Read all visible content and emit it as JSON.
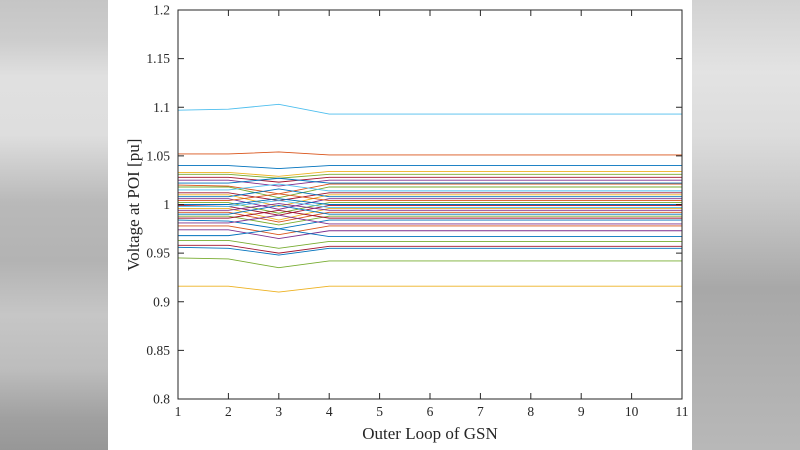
{
  "chart_data": {
    "type": "line",
    "title": "",
    "xlabel": "Outer Loop of GSN",
    "ylabel": "Voltage at POI [pu]",
    "grid": false,
    "legend": "none",
    "axis_color": "#262626",
    "plot_background": "#ffffff",
    "x": [
      1,
      2,
      3,
      4,
      5,
      6,
      7,
      8,
      9,
      10,
      11
    ],
    "xlim": [
      1,
      11
    ],
    "ylim": [
      0.8,
      1.2
    ],
    "xticks": [
      1,
      2,
      3,
      4,
      5,
      6,
      7,
      8,
      9,
      10,
      11
    ],
    "xtick_labels": [
      "1",
      "2",
      "3",
      "4",
      "5",
      "6",
      "7",
      "8",
      "9",
      "10",
      "11"
    ],
    "yticks": [
      0.8,
      0.85,
      0.9,
      0.95,
      1.0,
      1.05,
      1.1,
      1.15,
      1.2
    ],
    "ytick_labels": [
      "0.8",
      "0.85",
      "0.9",
      "0.95",
      "1",
      "1.05",
      "1.1",
      "1.15",
      "1.2"
    ],
    "series": [
      {
        "color": "#4DBEEE",
        "values": [
          1.097,
          1.098,
          1.103,
          1.093,
          1.093,
          1.093,
          1.093,
          1.093,
          1.093,
          1.093,
          1.093
        ]
      },
      {
        "color": "#D95319",
        "values": [
          1.052,
          1.052,
          1.054,
          1.051,
          1.051,
          1.051,
          1.051,
          1.051,
          1.051,
          1.051,
          1.051
        ]
      },
      {
        "color": "#0072BD",
        "values": [
          1.04,
          1.04,
          1.037,
          1.04,
          1.04,
          1.04,
          1.04,
          1.04,
          1.04,
          1.04,
          1.04
        ]
      },
      {
        "color": "#EDB120",
        "values": [
          1.033,
          1.033,
          1.029,
          1.034,
          1.034,
          1.034,
          1.034,
          1.034,
          1.034,
          1.034,
          1.034
        ]
      },
      {
        "color": "#77AC30",
        "values": [
          1.031,
          1.031,
          1.027,
          1.031,
          1.031,
          1.031,
          1.031,
          1.031,
          1.031,
          1.031,
          1.031
        ]
      },
      {
        "color": "#A2142F",
        "values": [
          1.028,
          1.028,
          1.023,
          1.028,
          1.028,
          1.028,
          1.028,
          1.028,
          1.028,
          1.028,
          1.028
        ]
      },
      {
        "color": "#7E2F8E",
        "values": [
          1.025,
          1.025,
          1.019,
          1.025,
          1.025,
          1.025,
          1.025,
          1.025,
          1.025,
          1.025,
          1.025
        ]
      },
      {
        "color": "#0072BD",
        "values": [
          1.022,
          1.022,
          1.027,
          1.022,
          1.022,
          1.022,
          1.022,
          1.022,
          1.022,
          1.022,
          1.022
        ]
      },
      {
        "color": "#D95319",
        "values": [
          1.02,
          1.019,
          1.011,
          1.021,
          1.021,
          1.021,
          1.021,
          1.021,
          1.021,
          1.021,
          1.021
        ]
      },
      {
        "color": "#77AC30",
        "values": [
          1.018,
          1.018,
          1.007,
          1.018,
          1.018,
          1.018,
          1.018,
          1.018,
          1.018,
          1.018,
          1.018
        ]
      },
      {
        "color": "#4DBEEE",
        "values": [
          1.015,
          1.015,
          1.021,
          1.014,
          1.014,
          1.014,
          1.014,
          1.014,
          1.014,
          1.014,
          1.014
        ]
      },
      {
        "color": "#A2142F",
        "values": [
          1.012,
          1.012,
          1.004,
          1.012,
          1.012,
          1.012,
          1.012,
          1.012,
          1.012,
          1.012,
          1.012
        ]
      },
      {
        "color": "#EDB120",
        "values": [
          1.01,
          1.01,
          0.998,
          1.01,
          1.01,
          1.01,
          1.01,
          1.01,
          1.01,
          1.01,
          1.01
        ]
      },
      {
        "color": "#0072BD",
        "values": [
          1.008,
          1.008,
          1.016,
          1.008,
          1.008,
          1.008,
          1.008,
          1.008,
          1.008,
          1.008,
          1.008
        ]
      },
      {
        "color": "#7E2F8E",
        "values": [
          1.006,
          1.006,
          0.995,
          1.006,
          1.006,
          1.006,
          1.006,
          1.006,
          1.006,
          1.006,
          1.006
        ]
      },
      {
        "color": "#D95319",
        "values": [
          1.004,
          1.004,
          1.011,
          1.004,
          1.004,
          1.004,
          1.004,
          1.004,
          1.004,
          1.004,
          1.004
        ]
      },
      {
        "color": "#77AC30",
        "values": [
          1.002,
          1.002,
          0.991,
          1.002,
          1.002,
          1.002,
          1.002,
          1.002,
          1.002,
          1.002,
          1.002
        ]
      },
      {
        "color": "#0072BD",
        "values": [
          1.0,
          1.0,
          1.006,
          1.0,
          1.0,
          1.0,
          1.0,
          1.0,
          1.0,
          1.0,
          1.0
        ]
      },
      {
        "color": "#A2142F",
        "values": [
          0.999,
          0.998,
          0.989,
          0.999,
          0.999,
          0.999,
          0.999,
          0.999,
          0.999,
          0.999,
          0.999
        ]
      },
      {
        "color": "#4DBEEE",
        "values": [
          0.998,
          0.998,
          1.004,
          0.997,
          0.997,
          0.997,
          0.997,
          0.997,
          0.997,
          0.997,
          0.997
        ]
      },
      {
        "color": "#EDB120",
        "values": [
          0.996,
          0.996,
          0.984,
          0.996,
          0.996,
          0.996,
          0.996,
          0.996,
          0.996,
          0.996,
          0.996
        ]
      },
      {
        "color": "#7E2F8E",
        "values": [
          0.994,
          0.994,
          1.001,
          0.994,
          0.994,
          0.994,
          0.994,
          0.994,
          0.994,
          0.994,
          0.994
        ]
      },
      {
        "color": "#D95319",
        "values": [
          0.992,
          0.992,
          0.982,
          0.992,
          0.992,
          0.992,
          0.992,
          0.992,
          0.992,
          0.992,
          0.992
        ]
      },
      {
        "color": "#0072BD",
        "values": [
          0.99,
          0.99,
          0.999,
          0.99,
          0.99,
          0.99,
          0.99,
          0.99,
          0.99,
          0.99,
          0.99
        ]
      },
      {
        "color": "#77AC30",
        "values": [
          0.988,
          0.988,
          0.979,
          0.988,
          0.988,
          0.988,
          0.988,
          0.988,
          0.988,
          0.988,
          0.988
        ]
      },
      {
        "color": "#A2142F",
        "values": [
          0.986,
          0.986,
          0.994,
          0.986,
          0.986,
          0.986,
          0.986,
          0.986,
          0.986,
          0.986,
          0.986
        ]
      },
      {
        "color": "#0072BD",
        "values": [
          0.984,
          0.983,
          0.975,
          0.984,
          0.984,
          0.984,
          0.984,
          0.984,
          0.984,
          0.984,
          0.984
        ]
      },
      {
        "color": "#7E2F8E",
        "values": [
          0.981,
          0.981,
          0.989,
          0.98,
          0.98,
          0.98,
          0.98,
          0.98,
          0.98,
          0.98,
          0.98
        ]
      },
      {
        "color": "#D95319",
        "values": [
          0.978,
          0.978,
          0.969,
          0.978,
          0.978,
          0.978,
          0.978,
          0.978,
          0.978,
          0.978,
          0.978
        ]
      },
      {
        "color": "#7E2F8E",
        "values": [
          0.974,
          0.974,
          0.965,
          0.973,
          0.973,
          0.973,
          0.973,
          0.973,
          0.973,
          0.973,
          0.973
        ]
      },
      {
        "color": "#0072BD",
        "values": [
          0.968,
          0.968,
          0.975,
          0.967,
          0.967,
          0.967,
          0.967,
          0.967,
          0.967,
          0.967,
          0.967
        ]
      },
      {
        "color": "#77AC30",
        "values": [
          0.963,
          0.963,
          0.955,
          0.962,
          0.962,
          0.962,
          0.962,
          0.962,
          0.962,
          0.962,
          0.962
        ]
      },
      {
        "color": "#A2142F",
        "values": [
          0.958,
          0.958,
          0.95,
          0.957,
          0.957,
          0.957,
          0.957,
          0.957,
          0.957,
          0.957,
          0.957
        ]
      },
      {
        "color": "#0072BD",
        "values": [
          0.956,
          0.955,
          0.948,
          0.955,
          0.955,
          0.955,
          0.955,
          0.955,
          0.955,
          0.955,
          0.955
        ]
      },
      {
        "color": "#77AC30",
        "values": [
          0.945,
          0.944,
          0.935,
          0.942,
          0.942,
          0.942,
          0.942,
          0.942,
          0.942,
          0.942,
          0.942
        ]
      },
      {
        "color": "#EDB120",
        "values": [
          0.916,
          0.916,
          0.91,
          0.916,
          0.916,
          0.916,
          0.916,
          0.916,
          0.916,
          0.916,
          0.916
        ]
      }
    ]
  }
}
